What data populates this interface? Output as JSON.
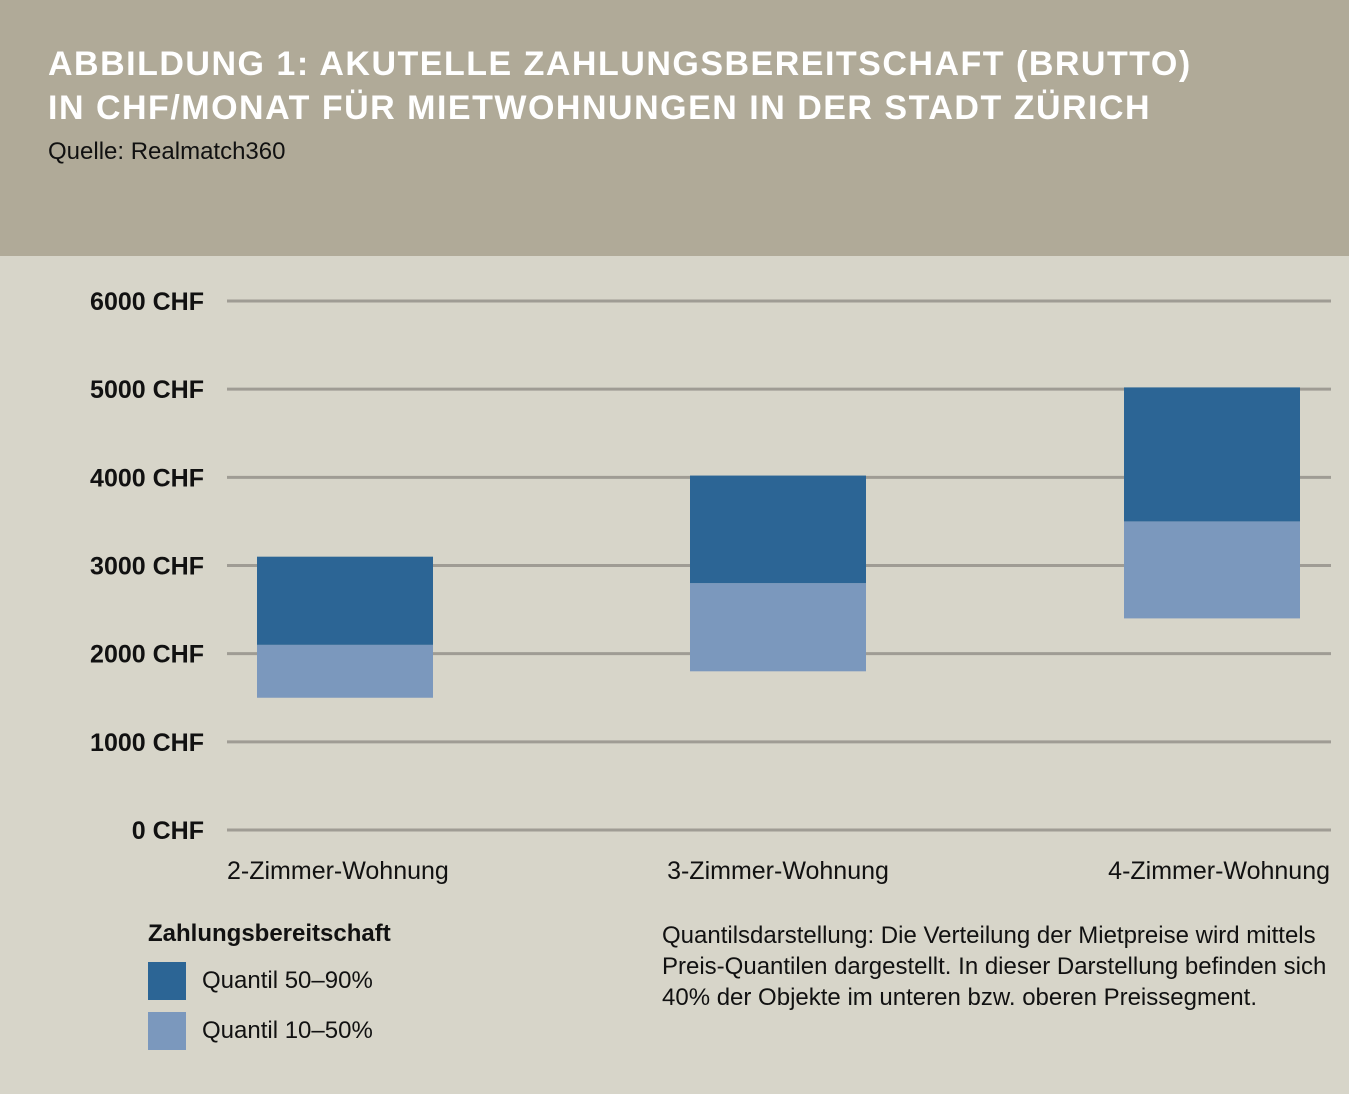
{
  "header": {
    "title_line1": "ABBILDUNG 1: AKUTELLE ZAHLUNGSBEREITSCHAFT (BRUTTO)",
    "title_line2": "IN CHF/MONAT FÜR MIETWOHNUNGEN IN DER STADT ZÜRICH",
    "source": "Quelle: Realmatch360"
  },
  "colors": {
    "header_bg": "#b0aa98",
    "page_bg": "#d7d5c9",
    "quantil_50_90": "#2c6595",
    "quantil_10_50": "#7b98bd",
    "gridline": "#9f9c94"
  },
  "chart_data": {
    "type": "bar",
    "stacked": true,
    "floating": true,
    "categories": [
      "2-Zimmer-Wohnung",
      "3-Zimmer-Wohnung",
      "4-Zimmer-Wohnung"
    ],
    "series": [
      {
        "name": "Quantil 10–50%",
        "low": [
          1500,
          1800,
          2400
        ],
        "high": [
          2100,
          2800,
          3500
        ]
      },
      {
        "name": "Quantil 50–90%",
        "low": [
          2100,
          2800,
          3500
        ],
        "high": [
          3100,
          4020,
          5020
        ]
      }
    ],
    "yticks": [
      0,
      1000,
      2000,
      3000,
      4000,
      5000,
      6000
    ],
    "ytick_labels": [
      "0 CHF",
      "1000 CHF",
      "2000 CHF",
      "3000 CHF",
      "4000 CHF",
      "5000 CHF",
      "6000 CHF"
    ],
    "ylim": [
      0,
      6000
    ],
    "grid": true,
    "legend_position": "bottom-left"
  },
  "legend": {
    "title": "Zahlungsbereitschaft",
    "items": [
      {
        "label": "Quantil 50–90%"
      },
      {
        "label": "Quantil 10–50%"
      }
    ]
  },
  "note": "Quantilsdarstellung: Die Verteilung der Mietpreise wird mittels Preis-Quantilen dargestellt. In dieser Darstellung befinden sich 40% der Objekte im unteren bzw. oberen Preissegment."
}
